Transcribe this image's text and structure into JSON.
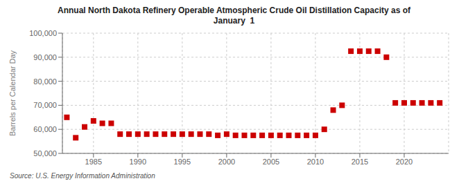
{
  "chart_data": {
    "type": "scatter",
    "title": "Annual North Dakota Refinery Operable Atmospheric Crude Oil Distillation Capacity as of\nJanuary  1",
    "ylabel": "Barrels per Calendar Day",
    "source": "Source: U.S. Energy Information Administration",
    "x": [
      1982,
      1983,
      1984,
      1985,
      1986,
      1987,
      1988,
      1989,
      1990,
      1991,
      1992,
      1993,
      1994,
      1995,
      1996,
      1997,
      1998,
      1999,
      2000,
      2001,
      2002,
      2003,
      2004,
      2005,
      2006,
      2007,
      2008,
      2009,
      2010,
      2011,
      2012,
      2013,
      2014,
      2015,
      2016,
      2017,
      2018,
      2019,
      2020,
      2021,
      2022,
      2023,
      2024
    ],
    "values": [
      65000,
      56500,
      61000,
      63500,
      62500,
      62500,
      58000,
      58000,
      58000,
      58000,
      58000,
      58000,
      58000,
      58000,
      58000,
      58000,
      58000,
      57500,
      58000,
      57500,
      57500,
      57500,
      57500,
      57500,
      57500,
      57500,
      57500,
      57500,
      57500,
      60000,
      68000,
      70000,
      92500,
      92500,
      92500,
      92500,
      90000,
      71000,
      71000,
      71000,
      71000,
      71000,
      71000
    ],
    "color": "#cc0000",
    "marker": "square",
    "xlim": [
      1981.5,
      2025
    ],
    "xticks": [
      1985,
      1990,
      1995,
      2000,
      2005,
      2010,
      2015,
      2020
    ],
    "ylim": [
      50000,
      100000
    ],
    "yticks": [
      {
        "value": 50000,
        "label": "50,000"
      },
      {
        "value": 60000,
        "label": "60,000"
      },
      {
        "value": 70000,
        "label": "70,000"
      },
      {
        "value": 80000,
        "label": "80,000"
      },
      {
        "value": 90000,
        "label": "90,000"
      },
      {
        "value": 100000,
        "label": "100,000"
      }
    ],
    "grid": true
  }
}
